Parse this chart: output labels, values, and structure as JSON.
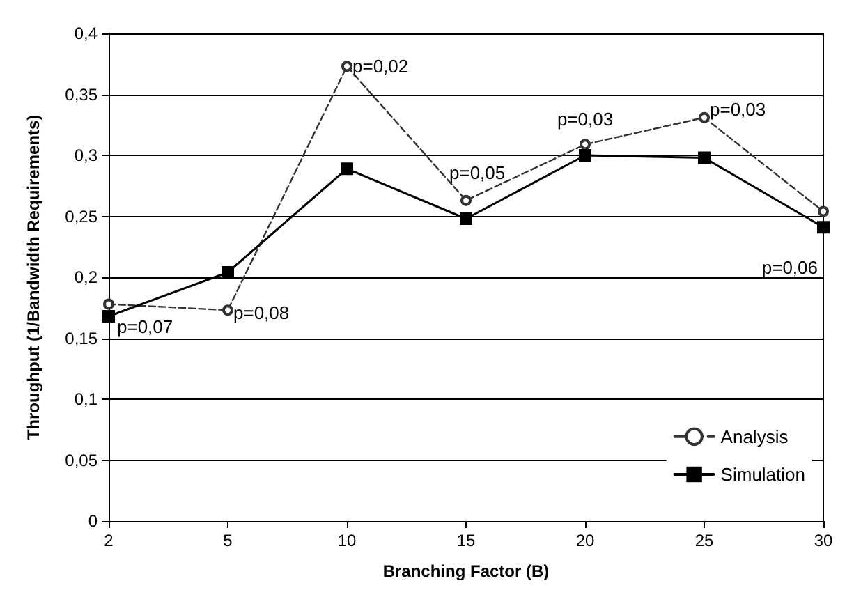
{
  "chart_data": {
    "type": "line",
    "xlabel": "Branching Factor (B)",
    "ylabel": "Throughput (1/Bandwidth Requirements)",
    "categories": [
      "2",
      "5",
      "10",
      "15",
      "20",
      "25",
      "30"
    ],
    "series": [
      {
        "name": "Analysis",
        "color": "#333333",
        "marker": "circle",
        "line_style": "dashed",
        "values": [
          0.178,
          0.173,
          0.373,
          0.263,
          0.309,
          0.331,
          0.254
        ]
      },
      {
        "name": "Simulation",
        "color": "#000000",
        "marker": "square",
        "line_style": "solid",
        "values": [
          0.168,
          0.204,
          0.289,
          0.248,
          0.3,
          0.298,
          0.241
        ]
      }
    ],
    "ylim": [
      0,
      0.4
    ],
    "yticks": [
      {
        "value": 0,
        "label": "0"
      },
      {
        "value": 0.05,
        "label": "0,05"
      },
      {
        "value": 0.1,
        "label": "0,1"
      },
      {
        "value": 0.15,
        "label": "0,15"
      },
      {
        "value": 0.2,
        "label": "0,2"
      },
      {
        "value": 0.25,
        "label": "0,25"
      },
      {
        "value": 0.3,
        "label": "0,3"
      },
      {
        "value": 0.35,
        "label": "0,35"
      },
      {
        "value": 0.4,
        "label": "0,4"
      }
    ],
    "annotations": [
      {
        "text": "p=0,07",
        "x": "2",
        "y": 0.178
      },
      {
        "text": "p=0,08",
        "x": "5",
        "y": 0.173
      },
      {
        "text": "p=0,02",
        "x": "10",
        "y": 0.373
      },
      {
        "text": "p=0,05",
        "x": "15",
        "y": 0.263
      },
      {
        "text": "p=0,03",
        "x": "20",
        "y": 0.309
      },
      {
        "text": "p=0,03",
        "x": "25",
        "y": 0.331
      },
      {
        "text": "p=0,06",
        "x": "30",
        "y": 0.254
      }
    ],
    "grid": "y",
    "legend": "bottom right"
  }
}
